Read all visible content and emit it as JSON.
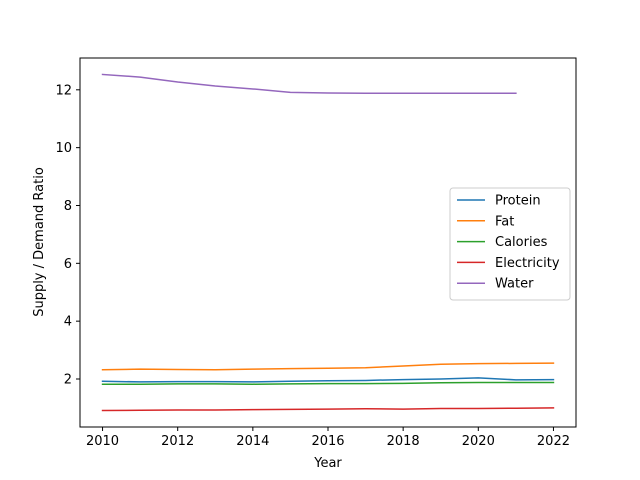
{
  "chart_data": {
    "type": "line",
    "title": "",
    "xlabel": "Year",
    "ylabel": "Supply / Demand Ratio",
    "xlim": [
      2009.4,
      2022.6
    ],
    "ylim": [
      0.34,
      13.1
    ],
    "xticks": [
      2010,
      2012,
      2014,
      2016,
      2018,
      2020,
      2022
    ],
    "yticks": [
      2,
      4,
      6,
      8,
      10,
      12
    ],
    "grid": false,
    "legend_position": "center-right",
    "series": [
      {
        "name": "Protein",
        "color": "#1f77b4",
        "x": [
          2010,
          2011,
          2012,
          2013,
          2014,
          2015,
          2016,
          2017,
          2018,
          2019,
          2020,
          2021,
          2022
        ],
        "y": [
          1.92,
          1.9,
          1.91,
          1.91,
          1.9,
          1.92,
          1.94,
          1.95,
          1.98,
          2.0,
          2.04,
          1.97,
          1.98
        ]
      },
      {
        "name": "Fat",
        "color": "#ff7f0e",
        "x": [
          2010,
          2011,
          2012,
          2013,
          2014,
          2015,
          2016,
          2017,
          2018,
          2019,
          2020,
          2021,
          2022
        ],
        "y": [
          2.32,
          2.34,
          2.33,
          2.32,
          2.34,
          2.36,
          2.37,
          2.39,
          2.45,
          2.51,
          2.53,
          2.54,
          2.55
        ]
      },
      {
        "name": "Calories",
        "color": "#2ca02c",
        "x": [
          2010,
          2011,
          2012,
          2013,
          2014,
          2015,
          2016,
          2017,
          2018,
          2019,
          2020,
          2021,
          2022
        ],
        "y": [
          1.82,
          1.82,
          1.83,
          1.83,
          1.82,
          1.83,
          1.84,
          1.84,
          1.85,
          1.87,
          1.88,
          1.88,
          1.88
        ]
      },
      {
        "name": "Electricity",
        "color": "#d62728",
        "x": [
          2010,
          2011,
          2012,
          2013,
          2014,
          2015,
          2016,
          2017,
          2018,
          2019,
          2020,
          2021,
          2022
        ],
        "y": [
          0.91,
          0.92,
          0.93,
          0.93,
          0.94,
          0.95,
          0.96,
          0.97,
          0.96,
          0.98,
          0.98,
          0.99,
          1.0
        ]
      },
      {
        "name": "Water",
        "color": "#9467bd",
        "x": [
          2010,
          2011,
          2012,
          2013,
          2014,
          2015,
          2016,
          2017,
          2018,
          2019,
          2020,
          2021
        ],
        "y": [
          12.53,
          12.44,
          12.27,
          12.13,
          12.03,
          11.91,
          11.89,
          11.88,
          11.88,
          11.88,
          11.88,
          11.88
        ]
      }
    ]
  }
}
